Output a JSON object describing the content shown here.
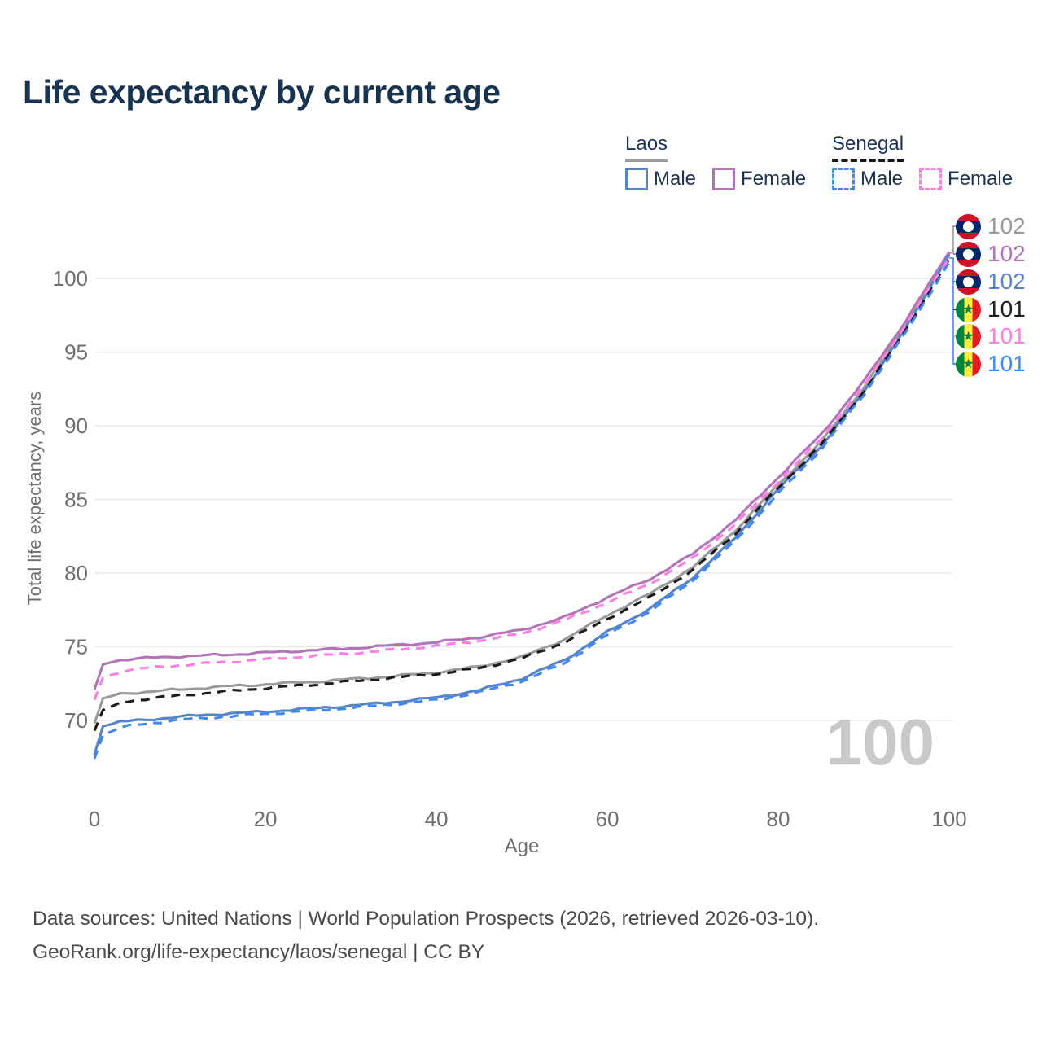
{
  "title": "Life expectancy by current age",
  "legend": {
    "groups": [
      {
        "name": "Laos",
        "line_style": "solid",
        "underline_color": "#9a9a9a",
        "items": [
          {
            "label": "Male",
            "color": "#5585c8",
            "dashed": false
          },
          {
            "label": "Female",
            "color": "#b273b8",
            "dashed": false
          }
        ]
      },
      {
        "name": "Senegal",
        "line_style": "dashed",
        "underline_color": "#161616",
        "items": [
          {
            "label": "Male",
            "color": "#4189f0",
            "dashed": true
          },
          {
            "label": "Female",
            "color": "#fc7fe1",
            "dashed": true
          }
        ]
      }
    ]
  },
  "chart_data": {
    "type": "line",
    "title": "Life expectancy by current age",
    "xlabel": "Age",
    "ylabel": "Total life expectancy, years",
    "x_ticks": [
      0,
      20,
      40,
      60,
      80,
      100
    ],
    "y_ticks": [
      70,
      75,
      80,
      85,
      90,
      95,
      100
    ],
    "xlim": [
      0,
      100
    ],
    "ylim": [
      67,
      103
    ],
    "grid": "horizontal-only",
    "legend_position": "top-right",
    "watermark_current_age": "100",
    "ages": [
      0,
      1,
      3,
      5,
      10,
      15,
      20,
      25,
      30,
      35,
      40,
      45,
      50,
      55,
      60,
      65,
      70,
      75,
      80,
      85,
      90,
      95,
      100
    ],
    "series": [
      {
        "name": "Laos — Total",
        "country": "Laos",
        "group": "total",
        "flag": "laos",
        "color": "#9a9a9a",
        "dashed": false,
        "end_label": "102",
        "values": [
          69.8,
          71.5,
          71.8,
          71.9,
          72.1,
          72.3,
          72.45,
          72.6,
          72.8,
          73.0,
          73.25,
          73.65,
          74.3,
          75.5,
          77.15,
          78.6,
          80.4,
          82.9,
          86.0,
          88.9,
          92.6,
          96.9,
          101.7
        ]
      },
      {
        "name": "Laos — Female",
        "country": "Laos",
        "group": "female",
        "flag": "laos",
        "color": "#b273b8",
        "dashed": false,
        "end_label": "102",
        "values": [
          72.1,
          73.8,
          74.1,
          74.2,
          74.35,
          74.45,
          74.6,
          74.75,
          74.9,
          75.1,
          75.3,
          75.65,
          76.15,
          77.0,
          78.35,
          79.6,
          81.3,
          83.6,
          86.5,
          89.4,
          93.0,
          97.2,
          101.8
        ]
      },
      {
        "name": "Laos — Male",
        "country": "Laos",
        "group": "male",
        "flag": "laos",
        "color": "#5585c8",
        "dashed": false,
        "end_label": "102",
        "values": [
          67.7,
          69.6,
          69.9,
          70.0,
          70.25,
          70.45,
          70.6,
          70.8,
          71.0,
          71.25,
          71.55,
          72.05,
          72.85,
          74.1,
          76.0,
          77.6,
          79.7,
          82.4,
          85.7,
          88.6,
          92.3,
          96.7,
          101.6
        ]
      },
      {
        "name": "Senegal — Total",
        "country": "Senegal",
        "group": "total",
        "flag": "senegal",
        "color": "#1c1c1c",
        "dashed": true,
        "end_label": "101",
        "values": [
          69.3,
          70.7,
          71.2,
          71.4,
          71.7,
          71.95,
          72.2,
          72.4,
          72.65,
          72.9,
          73.15,
          73.55,
          74.2,
          75.3,
          76.9,
          78.35,
          80.2,
          82.7,
          85.8,
          88.7,
          92.3,
          96.6,
          101.3
        ]
      },
      {
        "name": "Senegal — Female",
        "country": "Senegal",
        "group": "female",
        "flag": "senegal",
        "color": "#fc7fe1",
        "dashed": true,
        "end_label": "101",
        "values": [
          71.4,
          72.9,
          73.3,
          73.5,
          73.75,
          73.95,
          74.15,
          74.35,
          74.55,
          74.8,
          75.05,
          75.4,
          75.9,
          76.8,
          78.0,
          79.3,
          81.0,
          83.3,
          86.2,
          89.1,
          92.7,
          96.9,
          101.4
        ]
      },
      {
        "name": "Senegal — Male",
        "country": "Senegal",
        "group": "male",
        "flag": "senegal",
        "color": "#4189f0",
        "dashed": true,
        "end_label": "101",
        "values": [
          67.4,
          69.0,
          69.5,
          69.7,
          70.05,
          70.25,
          70.45,
          70.65,
          70.85,
          71.1,
          71.4,
          71.9,
          72.65,
          73.9,
          75.8,
          77.4,
          79.5,
          82.2,
          85.4,
          88.4,
          92.1,
          96.4,
          101.1
        ]
      }
    ]
  },
  "colors": {
    "background": "#ffffff",
    "title_text": "#17334f",
    "legend_text": "#1d3354",
    "axis_text": "#6f6f6f",
    "gridline": "#e8e8e8",
    "watermark": "#c9c9c9",
    "footer_text": "#4a4a4a",
    "connector_gray": "#9a9a9a",
    "connector_blue": "#4189f0"
  },
  "flags": {
    "laos": {
      "red": "#ce1126",
      "blue": "#002868",
      "circle": "#ffffff"
    },
    "senegal": {
      "green": "#00853f",
      "yellow": "#fdef42",
      "red": "#e31b23",
      "star": "#00853f"
    }
  },
  "footer": {
    "line1": "Data sources: United Nations | World Population Prospects (2026, retrieved 2026-03-10).",
    "line2": "GeoRank.org/life-expectancy/laos/senegal | CC BY"
  }
}
